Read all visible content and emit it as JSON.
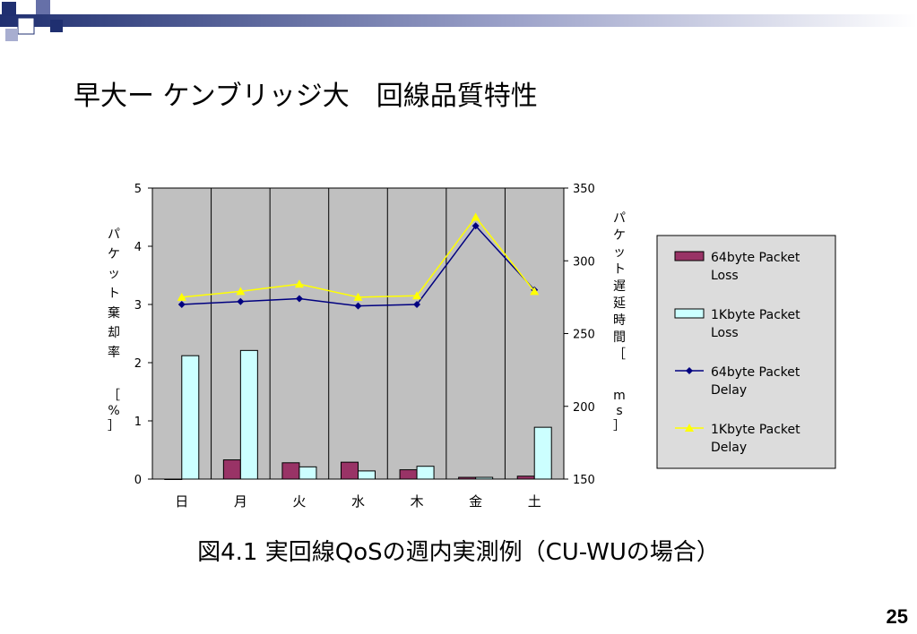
{
  "slide": {
    "title": "早大ー ケンブリッジ大　回線品質特性",
    "caption": "図4.1 実回線QoSの週内実測例（CU-WUの場合）",
    "page_number": "25"
  },
  "colors": {
    "plot_bg": "#c0c0c0",
    "loss64": "#993366",
    "loss1k": "#ccffff",
    "delay64": "#000080",
    "delay1k": "#ffff00",
    "legend_bg": "#dcdcdc"
  },
  "chart_data": {
    "type": "bar",
    "categories": [
      "日",
      "月",
      "火",
      "水",
      "木",
      "金",
      "土"
    ],
    "y_left": {
      "label": "パケット棄却率［%］",
      "ticks": [
        "0",
        "1",
        "2",
        "3",
        "4",
        "5"
      ],
      "range": [
        0,
        5
      ]
    },
    "y_right": {
      "label": "パケット遅延時間［ms］",
      "ticks": [
        "150",
        "200",
        "250",
        "300",
        "350"
      ],
      "range": [
        150,
        350
      ]
    },
    "series": [
      {
        "name": "64byte Packet Loss",
        "kind": "bar",
        "axis": "left",
        "values": [
          0,
          0.33,
          0.28,
          0.29,
          0.16,
          0.03,
          0.05
        ]
      },
      {
        "name": "1Kbyte Packet Loss",
        "kind": "bar",
        "axis": "left",
        "values": [
          2.12,
          2.21,
          0.21,
          0.14,
          0.22,
          0.03,
          0.89
        ]
      },
      {
        "name": "64byte Packet Delay",
        "kind": "line",
        "axis": "right",
        "values": [
          270,
          272,
          274,
          269,
          270,
          324,
          280
        ]
      },
      {
        "name": "1Kbyte Packet Delay",
        "kind": "line",
        "axis": "right",
        "values": [
          275,
          279,
          284,
          275,
          276,
          330,
          279
        ]
      }
    ],
    "grid": "vertical",
    "legend": "right"
  }
}
